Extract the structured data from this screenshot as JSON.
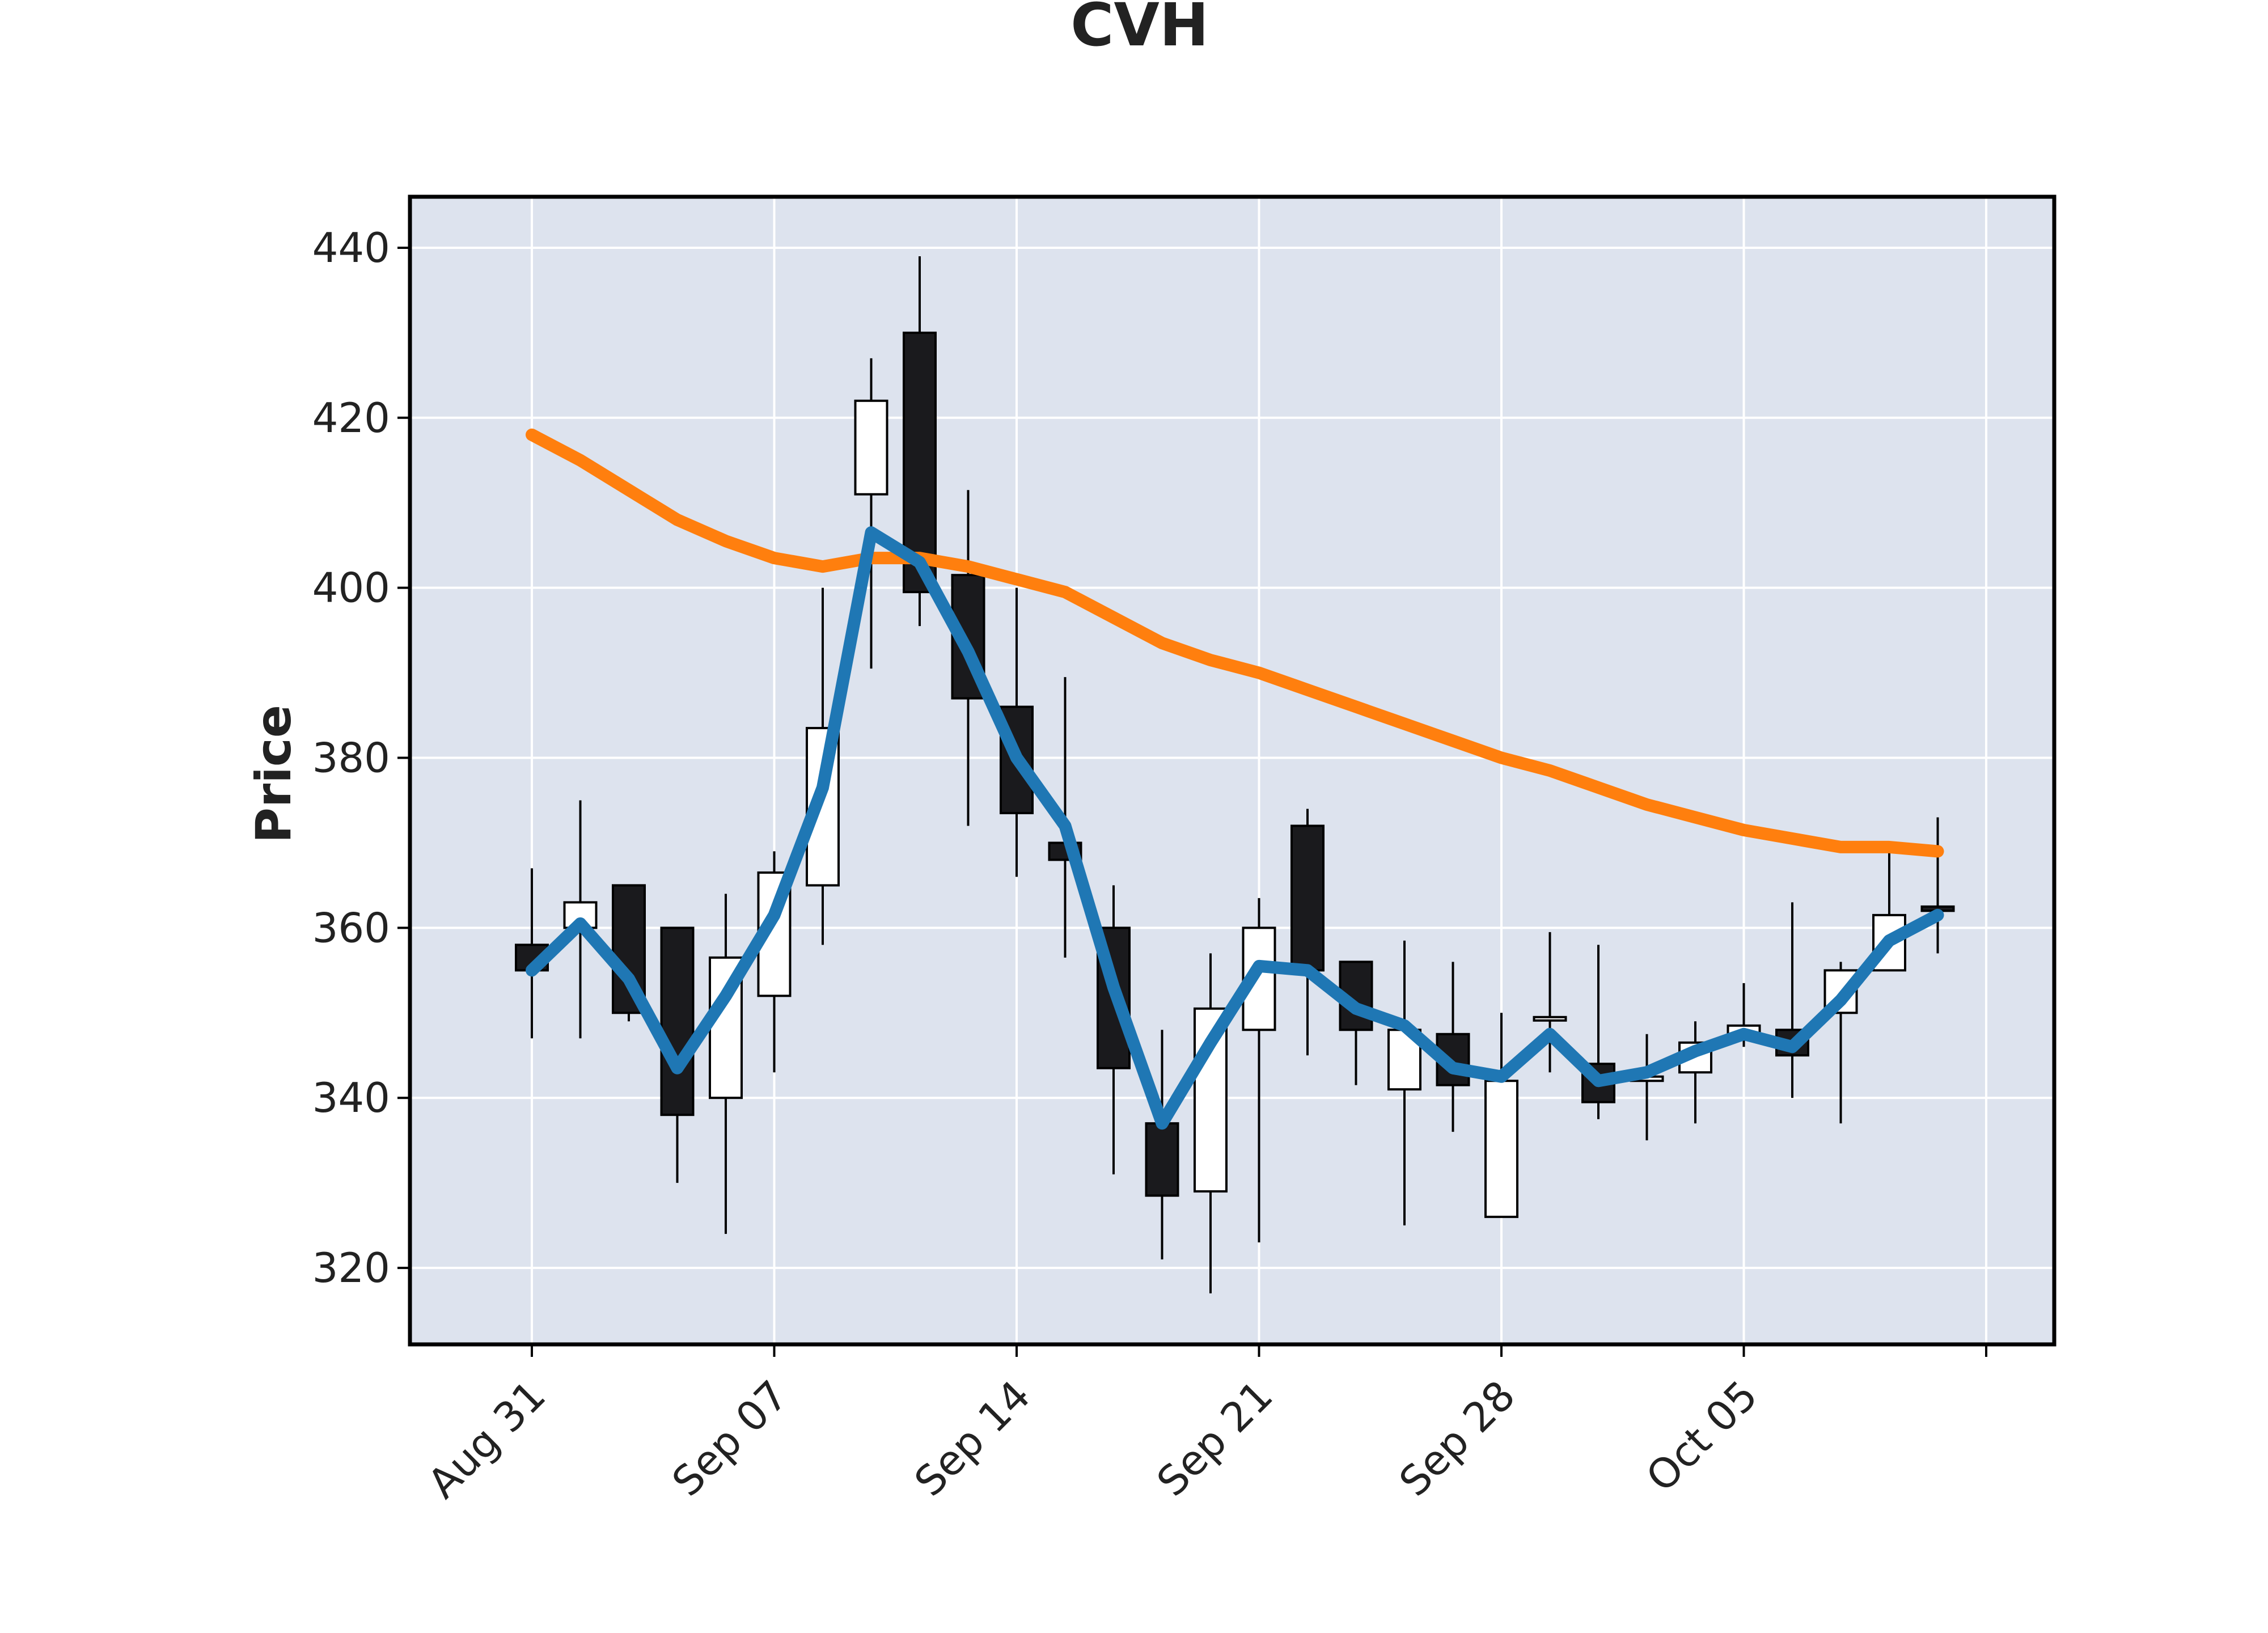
{
  "chart_data": {
    "type": "candlestick",
    "title": "CVH",
    "xlabel": "",
    "ylabel": "Price",
    "ylim": [
      311,
      446
    ],
    "yticks": [
      320,
      340,
      360,
      380,
      400,
      420,
      440
    ],
    "x_tick_labels": [
      "Aug 31",
      "Sep 07",
      "Sep 14",
      "Sep 21",
      "Sep 28",
      "Oct 05"
    ],
    "grid": true,
    "legend": "none",
    "colors": {
      "plot_background": "#dde3ee",
      "grid": "#ffffff",
      "up_candle": "#ffffff",
      "down_candle": "#1a1a1d",
      "candle_edge": "#000000",
      "fast_ma": "#1f77b4",
      "slow_ma": "#ff7f0e"
    },
    "dates": [
      "2021-08-31",
      "2021-09-01",
      "2021-09-02",
      "2021-09-03",
      "2021-09-06",
      "2021-09-07",
      "2021-09-08",
      "2021-09-09",
      "2021-09-10",
      "2021-09-13",
      "2021-09-14",
      "2021-09-15",
      "2021-09-16",
      "2021-09-17",
      "2021-09-20",
      "2021-09-21",
      "2021-09-22",
      "2021-09-23",
      "2021-09-24",
      "2021-09-27",
      "2021-09-28",
      "2021-09-29",
      "2021-09-30",
      "2021-10-01",
      "2021-10-04",
      "2021-10-05",
      "2021-10-06",
      "2021-10-07",
      "2021-10-08",
      "2021-10-09"
    ],
    "ohlc": [
      {
        "open": 358,
        "high": 367,
        "low": 347,
        "close": 355
      },
      {
        "open": 360,
        "high": 375,
        "low": 347,
        "close": 363
      },
      {
        "open": 365,
        "high": 365,
        "low": 349,
        "close": 350
      },
      {
        "open": 360,
        "high": 360,
        "low": 330,
        "close": 338
      },
      {
        "open": 340,
        "high": 364,
        "low": 324,
        "close": 356.5
      },
      {
        "open": 352,
        "high": 369,
        "low": 343,
        "close": 366.5
      },
      {
        "open": 365,
        "high": 400,
        "low": 358,
        "close": 383.5
      },
      {
        "open": 411,
        "high": 427,
        "low": 390.5,
        "close": 422
      },
      {
        "open": 430,
        "high": 439,
        "low": 395.5,
        "close": 399.5
      },
      {
        "open": 401.5,
        "high": 411.5,
        "low": 372,
        "close": 387
      },
      {
        "open": 386,
        "high": 400,
        "low": 366,
        "close": 373.5
      },
      {
        "open": 370,
        "high": 389.5,
        "low": 356.5,
        "close": 368
      },
      {
        "open": 360,
        "high": 365,
        "low": 331,
        "close": 343.5
      },
      {
        "open": 337,
        "high": 348,
        "low": 321,
        "close": 328.5
      },
      {
        "open": 329,
        "high": 357,
        "low": 317,
        "close": 350.5
      },
      {
        "open": 348,
        "high": 363.5,
        "low": 323,
        "close": 360
      },
      {
        "open": 372,
        "high": 374,
        "low": 345,
        "close": 355
      },
      {
        "open": 356,
        "high": 356,
        "low": 341.5,
        "close": 348
      },
      {
        "open": 341,
        "high": 358.5,
        "low": 325,
        "close": 348
      },
      {
        "open": 347.5,
        "high": 356,
        "low": 336,
        "close": 341.5
      },
      {
        "open": 326,
        "high": 350,
        "low": 326,
        "close": 342
      },
      {
        "open": 349.5,
        "high": 359.5,
        "low": 343,
        "close": 349.5
      },
      {
        "open": 344,
        "high": 358,
        "low": 337.5,
        "close": 339.5
      },
      {
        "open": 342,
        "high": 347.5,
        "low": 335,
        "close": 342.5
      },
      {
        "open": 343,
        "high": 349,
        "low": 337,
        "close": 346.5
      },
      {
        "open": 347,
        "high": 353.5,
        "low": 346,
        "close": 348.5
      },
      {
        "open": 348,
        "high": 363,
        "low": 340,
        "close": 345
      },
      {
        "open": 350,
        "high": 356,
        "low": 337,
        "close": 355
      },
      {
        "open": 355,
        "high": 369,
        "low": 355,
        "close": 361.5
      },
      {
        "open": 362.5,
        "high": 373,
        "low": 357,
        "close": 362
      }
    ],
    "series": [
      {
        "values": [
          355,
          360.5,
          354,
          343.5,
          352,
          361.5,
          376.5,
          406.5,
          403,
          392.5,
          380,
          372,
          353,
          337,
          346.5,
          355.5,
          355,
          350.5,
          348.5,
          343.5,
          342.5,
          347.5,
          342,
          343,
          345.5,
          347.5,
          346,
          351.5,
          358.5,
          361.5
        ]
      },
      {
        "values": [
          418,
          415,
          411.5,
          408,
          405.5,
          403.5,
          402.5,
          403.5,
          403.5,
          402.5,
          401,
          399.5,
          396.5,
          393.5,
          391.5,
          390,
          388,
          386,
          384,
          382,
          380,
          378.5,
          376.5,
          374.5,
          373,
          371.5,
          370.5,
          369.5,
          369.5,
          369
        ]
      }
    ]
  }
}
